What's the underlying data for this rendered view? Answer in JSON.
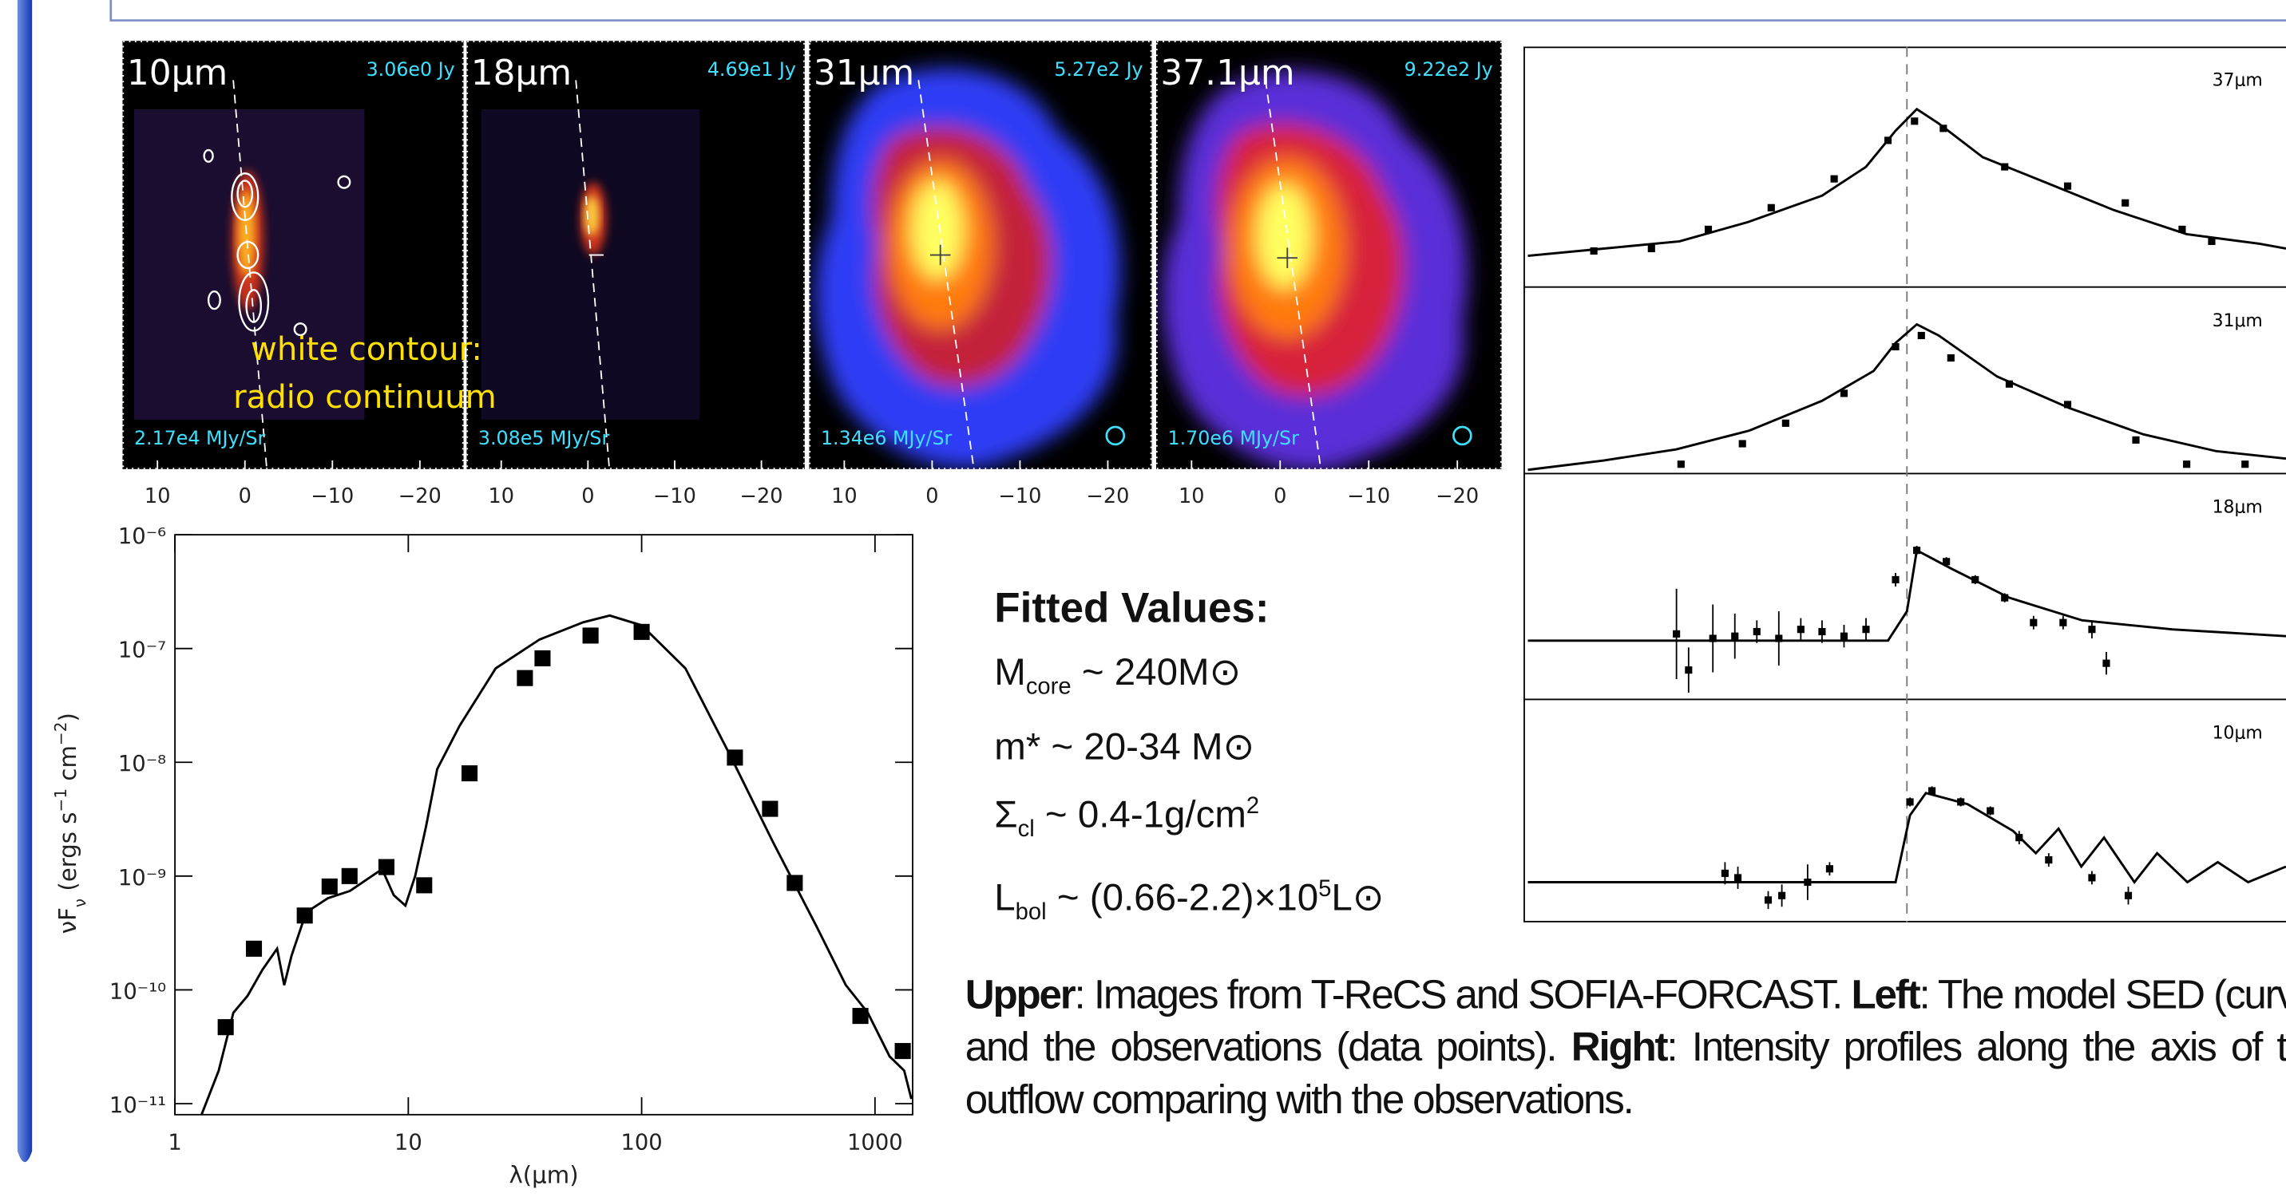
{
  "images": [
    {
      "band": "10μm",
      "flux": "3.06e0 Jy",
      "surface": "2.17e4 MJy/Sr",
      "xlim": [
        14,
        -25
      ],
      "xticks": [
        10,
        0,
        {
          "value": -10,
          "label": "−10"
        },
        {
          "value": -20,
          "label": "−20"
        }
      ]
    },
    {
      "band": "18μm",
      "flux": "4.69e1 Jy",
      "surface": "3.08e5 MJy/Sr",
      "xlim": [
        14,
        -25
      ],
      "xticks": [
        10,
        0,
        {
          "value": -10,
          "label": "−10"
        },
        {
          "value": -20,
          "label": "−20"
        }
      ]
    },
    {
      "band": "31μm",
      "flux": "5.27e2 Jy",
      "surface": "1.34e6 MJy/Sr",
      "xlim": [
        14,
        -25
      ],
      "xticks": [
        10,
        0,
        {
          "value": -10,
          "label": "−10"
        },
        {
          "value": -20,
          "label": "−20"
        }
      ]
    },
    {
      "band": "37.1μm",
      "flux": "9.22e2 Jy",
      "surface": "1.70e6 MJy/Sr",
      "xlim": [
        14,
        -25
      ],
      "xticks": [
        10,
        0,
        {
          "value": -10,
          "label": "−10"
        },
        {
          "value": -20,
          "label": "−20"
        }
      ]
    }
  ],
  "annotation": [
    "white contour:",
    "radio continuum"
  ],
  "chart_data": [
    {
      "type": "sed",
      "xlabel": "λ(μm)",
      "ylabel": [
        {
          "text": "νF"
        },
        {
          "text": "ν",
          "sub": true
        },
        {
          "text": "  (ergs s"
        },
        {
          "text": "−1",
          "sup": true
        },
        {
          "text": " cm"
        },
        {
          "text": "−2",
          "sup": true
        },
        {
          "text": ")"
        }
      ],
      "xscale": "log",
      "yscale": "log",
      "xlim": [
        1,
        1450
      ],
      "ylim": [
        8e-12,
        1e-06
      ],
      "xticks": [
        1,
        10,
        100,
        1000
      ],
      "yticks": [
        {
          "value": 1e-11,
          "label": "10⁻¹¹"
        },
        {
          "value": 1e-10,
          "label": "10⁻¹⁰"
        },
        {
          "value": 1e-09,
          "label": "10⁻⁹"
        },
        {
          "value": 1e-08,
          "label": "10⁻⁸"
        },
        {
          "value": 1e-07,
          "label": "10⁻⁷"
        },
        {
          "value": 1e-06,
          "label": "10⁻⁶"
        }
      ],
      "series": [
        {
          "type": "line",
          "color": "#000000",
          "x": [
            1.3,
            1.54,
            1.78,
            2.05,
            2.37,
            2.74,
            2.94,
            3.16,
            3.65,
            4.53,
            5.62,
            6.98,
            7.72,
            8.66,
            9.72,
            10.7,
            11.9,
            13.3,
            16.6,
            23.7,
            36.5,
            56.2,
            72.9,
            100,
            154,
            237,
            365,
            562,
            750,
            931,
            1155,
            1334,
            1432
          ],
          "values": [
            8e-12,
            1.95e-11,
            6.3e-11,
            8.9e-11,
            1.5e-10,
            2.3e-10,
            1.1e-10,
            2e-10,
            4.8e-10,
            6.4e-10,
            7.4e-10,
            1e-09,
            1.15e-09,
            6.8e-10,
            5.5e-10,
            1e-09,
            2.7e-09,
            8.7e-09,
            2.1e-08,
            6.7e-08,
            1.2e-07,
            1.7e-07,
            1.95e-07,
            1.6e-07,
            6.7e-08,
            1.2e-08,
            2e-09,
            3.6e-10,
            1.1e-10,
            6.3e-11,
            2.6e-11,
            1.95e-11,
            1.1e-11
          ]
        },
        {
          "type": "scatter",
          "color": "#000000",
          "x": [
            1.65,
            2.18,
            3.6,
            4.6,
            5.6,
            8.06,
            11.7,
            18.3,
            31.6,
            37.6,
            60.4,
            100,
            251,
            355,
            453,
            866,
            1315
          ],
          "values": [
            4.7e-11,
            2.3e-10,
            4.5e-10,
            8.1e-10,
            1e-09,
            1.2e-09,
            8.3e-10,
            8e-09,
            5.5e-08,
            8.2e-08,
            1.3e-07,
            1.4e-07,
            1.1e-08,
            3.9e-09,
            8.7e-10,
            5.9e-11,
            2.9e-11
          ]
        }
      ]
    },
    {
      "type": "profile",
      "label": "37μm",
      "xlim": [
        -50,
        50
      ],
      "ylim": [
        0,
        1
      ],
      "series": [
        {
          "type": "line",
          "color": "#000000",
          "x": [
            -50,
            -40,
            -30,
            -21,
            -11.2,
            -5.4,
            -1.5,
            1.3,
            4.2,
            10,
            17.9,
            27.3,
            36.9,
            46.5,
            50
          ],
          "values": [
            0.13,
            0.16,
            0.19,
            0.27,
            0.38,
            0.5,
            0.65,
            0.74,
            0.68,
            0.54,
            0.44,
            0.32,
            0.22,
            0.18,
            0.16
          ]
        },
        {
          "type": "scatter",
          "color": "#000000",
          "x": [
            -41.3,
            -33.7,
            -26.2,
            -17.9,
            -9.6,
            -2.5,
            1,
            4.8,
            12.9,
            21.2,
            28.8,
            36.3,
            40.2
          ],
          "values": [
            0.15,
            0.16,
            0.24,
            0.33,
            0.45,
            0.61,
            0.69,
            0.66,
            0.5,
            0.42,
            0.35,
            0.24,
            0.19
          ]
        }
      ]
    },
    {
      "type": "profile",
      "label": "31μm",
      "xlim": [
        -50,
        50
      ],
      "ylim": [
        0,
        1
      ],
      "series": [
        {
          "type": "line",
          "color": "#000000",
          "x": [
            -50,
            -40,
            -30.4,
            -20.8,
            -11.2,
            -4.4,
            -1.5,
            1.3,
            4.2,
            11.9,
            21.5,
            31.2,
            40.8,
            50
          ],
          "values": [
            0.02,
            0.07,
            0.13,
            0.23,
            0.39,
            0.55,
            0.7,
            0.8,
            0.74,
            0.52,
            0.35,
            0.21,
            0.12,
            0.08
          ]
        },
        {
          "type": "scatter",
          "color": "#000000",
          "x": [
            -29.8,
            -21.7,
            -16,
            -8.3,
            -1.5,
            1.9,
            5.8,
            13.5,
            21.2,
            30.2,
            36.9,
            44.6
          ],
          "values": [
            0.05,
            0.16,
            0.27,
            0.43,
            0.68,
            0.74,
            0.62,
            0.48,
            0.37,
            0.18,
            0.05,
            0.05
          ]
        }
      ]
    },
    {
      "type": "profile",
      "label": "18μm",
      "xlim": [
        -50,
        50
      ],
      "ylim": [
        0,
        1
      ],
      "series": [
        {
          "type": "line",
          "color": "#000000",
          "x": [
            -50,
            -2.5,
            0,
            1.3,
            5.8,
            13.5,
            23.1,
            35,
            50
          ],
          "values": [
            0.26,
            0.26,
            0.39,
            0.66,
            0.58,
            0.45,
            0.35,
            0.31,
            0.28
          ]
        },
        {
          "type": "scatter",
          "color": "#000000",
          "x": [
            -30.4,
            -28.8,
            -25.6,
            -22.7,
            -19.8,
            -16.9,
            -14,
            -11.2,
            -8.3,
            -5.4,
            -1.5,
            1.3,
            5.2,
            9,
            12.9,
            16.7,
            20.6,
            24.4,
            26.3
          ],
          "values": [
            0.29,
            0.13,
            0.27,
            0.28,
            0.3,
            0.27,
            0.31,
            0.3,
            0.28,
            0.31,
            0.53,
            0.66,
            0.61,
            0.53,
            0.45,
            0.34,
            0.34,
            0.31,
            0.16
          ],
          "errors": [
            0.2,
            0.1,
            0.15,
            0.1,
            0.05,
            0.12,
            0.05,
            0.05,
            0.05,
            0.05,
            0.03,
            0.02,
            0.02,
            0.02,
            0.02,
            0.03,
            0.03,
            0.04,
            0.05
          ]
        }
      ]
    },
    {
      "type": "profile",
      "label": "10μm",
      "xlim": [
        -50,
        50
      ],
      "ylim": [
        0,
        1
      ],
      "series": [
        {
          "type": "line",
          "color": "#000000",
          "x": [
            -50,
            -1.5,
            0.4,
            2.5,
            8,
            14,
            17,
            20,
            23,
            26,
            30,
            33,
            37,
            41,
            45,
            50
          ],
          "values": [
            0.18,
            0.18,
            0.48,
            0.58,
            0.53,
            0.41,
            0.31,
            0.42,
            0.25,
            0.38,
            0.18,
            0.31,
            0.18,
            0.27,
            0.18,
            0.25
          ]
        },
        {
          "type": "scatter",
          "color": "#000000",
          "x": [
            -24,
            -22.3,
            -18.3,
            -16.5,
            -13.1,
            -10.2,
            0.4,
            3.3,
            7.1,
            11,
            14.8,
            18.7,
            24.4,
            29.2
          ],
          "values": [
            0.22,
            0.2,
            0.1,
            0.12,
            0.18,
            0.24,
            0.54,
            0.59,
            0.54,
            0.5,
            0.38,
            0.28,
            0.2,
            0.12
          ],
          "errors": [
            0.05,
            0.05,
            0.04,
            0.05,
            0.08,
            0.03,
            0.02,
            0.02,
            0.02,
            0.02,
            0.03,
            0.03,
            0.03,
            0.04
          ]
        }
      ]
    }
  ],
  "fitted_values": {
    "title": "Fitted Values:",
    "lines": [
      [
        {
          "text": "M"
        },
        {
          "text": "core",
          "sub": true
        },
        {
          "text": " ~ 240M⊙"
        }
      ],
      [
        {
          "text": "m* ~ 20-34 M⊙"
        }
      ],
      [
        {
          "text": "Σ"
        },
        {
          "text": "cl",
          "sub": true
        },
        {
          "text": " ~ 0.4-1g/cm"
        },
        {
          "text": "2",
          "sup": true
        }
      ],
      [
        {
          "text": "L"
        },
        {
          "text": "bol",
          "sub": true
        },
        {
          "text": " ~ (0.66-2.2)×10"
        },
        {
          "text": "5",
          "sup": true
        },
        {
          "text": "L⊙"
        }
      ]
    ]
  },
  "caption": [
    {
      "text": "Upper",
      "bold": true
    },
    {
      "text": ": Images from T-ReCS and SOFIA-FORCAST. "
    },
    {
      "text": "Left",
      "bold": true
    },
    {
      "text": ": The model SED (curve) and the observations (data points). "
    },
    {
      "text": "Right",
      "bold": true
    },
    {
      "text": ": Intensity profiles along the axis of the outflow comparing with the observations."
    }
  ]
}
